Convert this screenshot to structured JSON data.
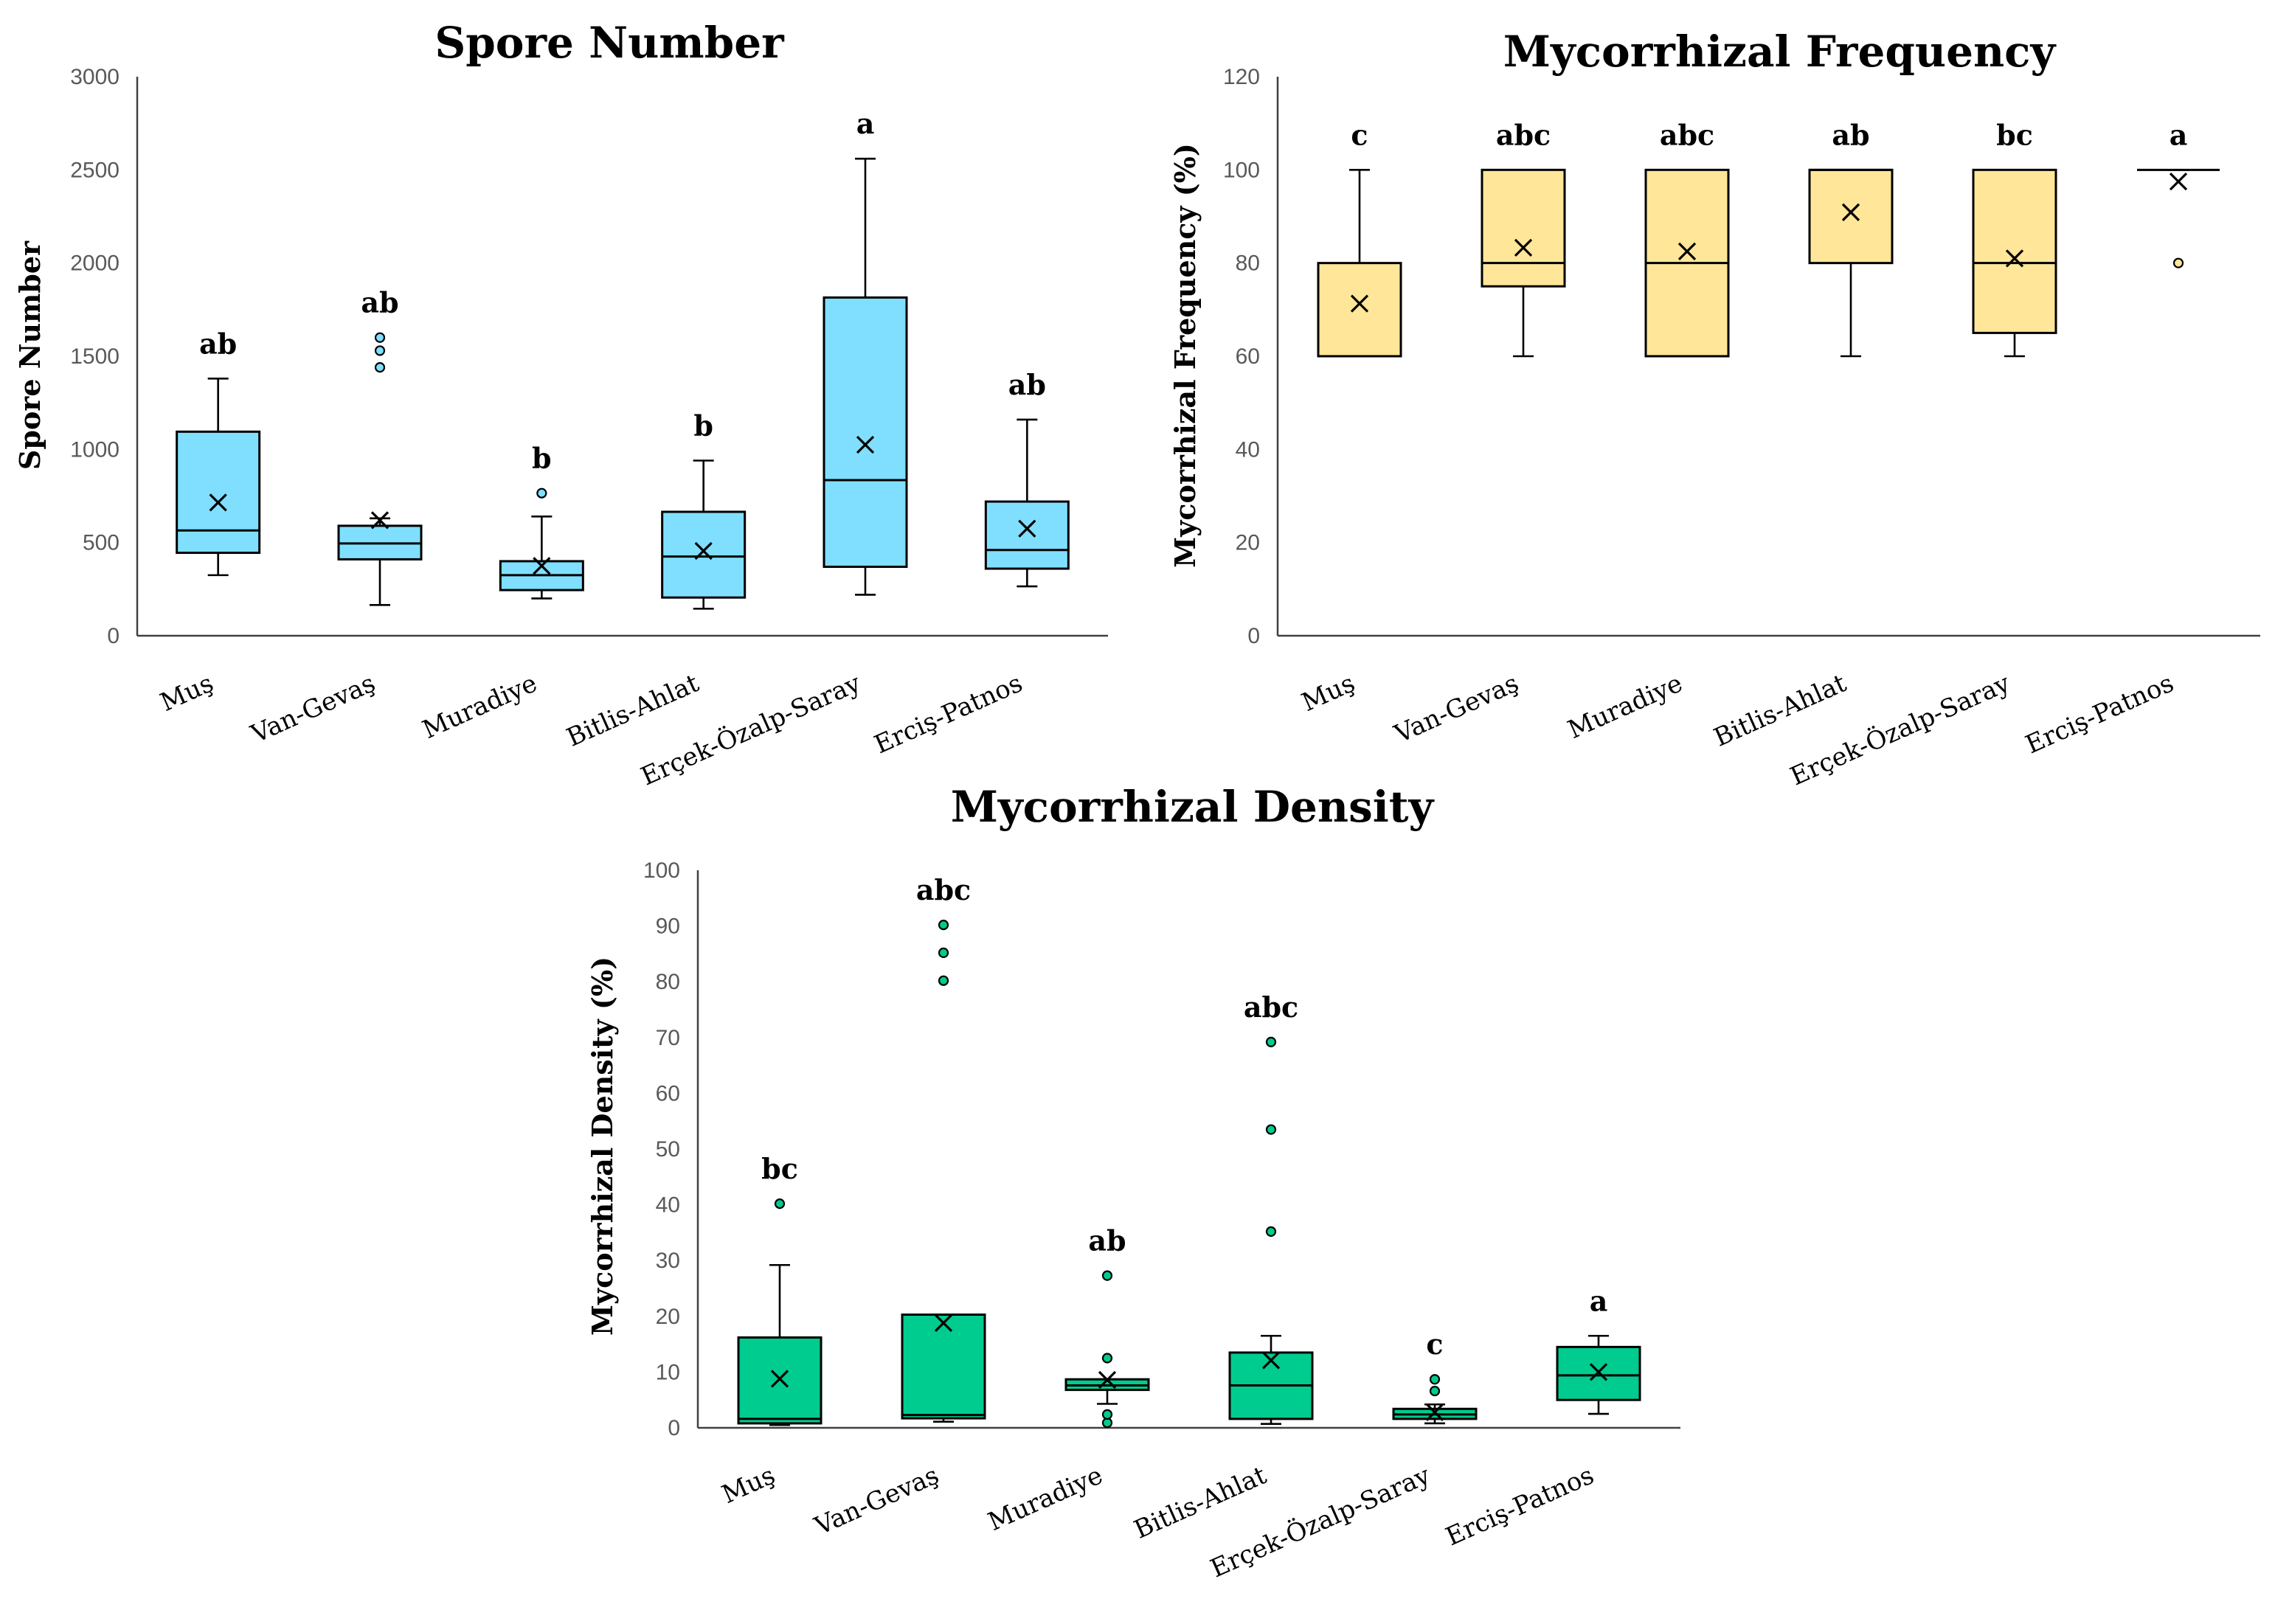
{
  "chart_data": [
    {
      "type": "boxplot",
      "title": "Spore Number",
      "ylabel": "Spore Number",
      "xlabel": "",
      "ylim": [
        0,
        3000
      ],
      "yticks": [
        0,
        500,
        1000,
        1500,
        2000,
        2500,
        3000
      ],
      "fill_color": "#80dfff",
      "grid": false,
      "categories": [
        "Muş",
        "Van-Gevaş",
        "Muradiye",
        "Bitlis-Ahlat",
        "Erçek-Özalp-Saray",
        "Erciş-Patnos"
      ],
      "boxes": [
        {
          "min": 325,
          "q1": 445,
          "median": 565,
          "q3": 1095,
          "max": 1380,
          "mean": 715,
          "outliers": [],
          "letter": "ab"
        },
        {
          "min": 165,
          "q1": 410,
          "median": 495,
          "q3": 590,
          "max": 630,
          "mean": 620,
          "outliers": [
            1440,
            1530,
            1600
          ],
          "letter": "ab"
        },
        {
          "min": 200,
          "q1": 245,
          "median": 325,
          "q3": 400,
          "max": 640,
          "mean": 375,
          "outliers": [
            765
          ],
          "letter": "b"
        },
        {
          "min": 145,
          "q1": 205,
          "median": 425,
          "q3": 665,
          "max": 940,
          "mean": 455,
          "outliers": [],
          "letter": "b"
        },
        {
          "min": 220,
          "q1": 370,
          "median": 835,
          "q3": 1815,
          "max": 2560,
          "mean": 1025,
          "outliers": [],
          "letter": "a"
        },
        {
          "min": 265,
          "q1": 360,
          "median": 460,
          "q3": 720,
          "max": 1160,
          "mean": 575,
          "outliers": [],
          "letter": "ab"
        }
      ]
    },
    {
      "type": "boxplot",
      "title": "Mycorrhizal Frequency",
      "ylabel": "Mycorrhizal Frequency (%)",
      "xlabel": "",
      "ylim": [
        0,
        120
      ],
      "yticks": [
        0,
        20,
        40,
        60,
        80,
        100,
        120
      ],
      "fill_color": "#ffe699",
      "grid": false,
      "categories": [
        "Muş",
        "Van-Gevaş",
        "Muradiye",
        "Bitlis-Ahlat",
        "Erçek-Özalp-Saray",
        "Erciş-Patnos"
      ],
      "boxes": [
        {
          "min": 60,
          "q1": 60,
          "median": 60,
          "q3": 80,
          "max": 100,
          "mean": 71.3,
          "outliers": [],
          "letter": "c"
        },
        {
          "min": 60,
          "q1": 75,
          "median": 80,
          "q3": 100,
          "max": 100,
          "mean": 83.3,
          "outliers": [],
          "letter": "abc"
        },
        {
          "min": 60,
          "q1": 60,
          "median": 80,
          "q3": 100,
          "max": 100,
          "mean": 82.5,
          "outliers": [],
          "letter": "abc"
        },
        {
          "min": 60,
          "q1": 80,
          "median": 100,
          "q3": 100,
          "max": 100,
          "mean": 90.9,
          "outliers": [],
          "letter": "ab"
        },
        {
          "min": 60,
          "q1": 65,
          "median": 80,
          "q3": 100,
          "max": 100,
          "mean": 81,
          "outliers": [],
          "letter": "bc"
        },
        {
          "min": 100,
          "q1": 100,
          "median": 100,
          "q3": 100,
          "max": 100,
          "mean": 97.5,
          "outliers": [
            80
          ],
          "letter": "a"
        }
      ]
    },
    {
      "type": "boxplot",
      "title": "Mycorrhizal Density",
      "ylabel": "Mycorrhizal Density (%)",
      "xlabel": "",
      "ylim": [
        0,
        100
      ],
      "yticks": [
        0,
        10,
        20,
        30,
        40,
        50,
        60,
        70,
        80,
        90,
        100
      ],
      "fill_color": "#00cc8f",
      "grid": false,
      "categories": [
        "Muş",
        "Van-Gevaş",
        "Muradiye",
        "Bitlis-Ahlat",
        "Erçek-Özalp-Saray",
        "Erciş-Patnos"
      ],
      "boxes": [
        {
          "min": 0.5,
          "q1": 0.8,
          "median": 1.6,
          "q3": 16.2,
          "max": 29.2,
          "mean": 8.8,
          "outliers": [
            40.2
          ],
          "letter": "bc"
        },
        {
          "min": 1.1,
          "q1": 1.7,
          "median": 2.3,
          "q3": 20.3,
          "max": 20.3,
          "mean": 18.8,
          "outliers": [
            80.2,
            85.2,
            90.2
          ],
          "letter": "abc"
        },
        {
          "min": 4.3,
          "q1": 6.8,
          "median": 7.6,
          "q3": 8.7,
          "max": 8.7,
          "mean": 8.6,
          "outliers": [
            0.9,
            2.4,
            12.5,
            27.3
          ],
          "letter": "ab"
        },
        {
          "min": 0.7,
          "q1": 1.6,
          "median": 7.6,
          "q3": 13.5,
          "max": 16.5,
          "mean": 12.1,
          "outliers": [
            35.2,
            53.5,
            69.2
          ],
          "letter": "abc"
        },
        {
          "min": 0.8,
          "q1": 1.6,
          "median": 2.4,
          "q3": 3.4,
          "max": 4.2,
          "mean": 2.8,
          "outliers": [
            6.6,
            8.7
          ],
          "letter": "c"
        },
        {
          "min": 2.5,
          "q1": 5,
          "median": 9.4,
          "q3": 14.5,
          "max": 16.5,
          "mean": 10,
          "outliers": [],
          "letter": "a"
        }
      ]
    }
  ]
}
